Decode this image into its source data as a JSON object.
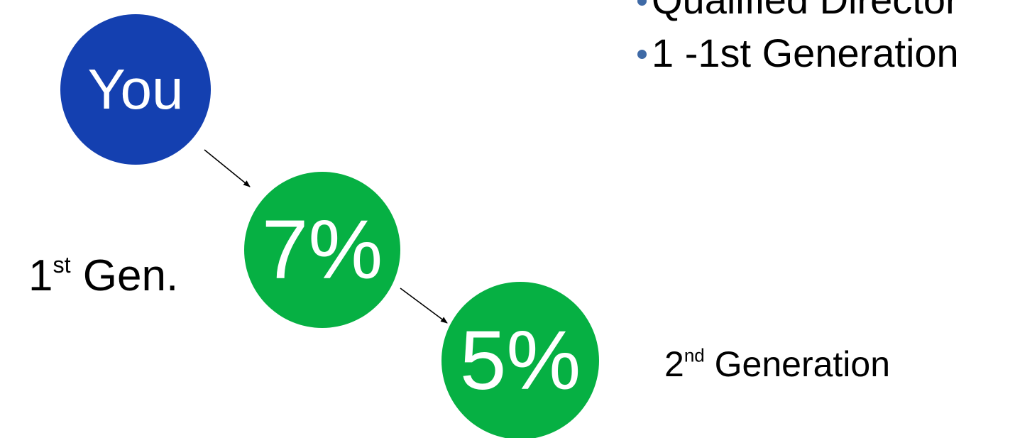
{
  "colors": {
    "you_node": "#1440b0",
    "generation_node": "#06b043",
    "bullet_dot": "#3f6aa6",
    "connector": "#000000"
  },
  "nodes": {
    "you": {
      "label": "You"
    },
    "first_gen": {
      "label": "7%"
    },
    "second_gen": {
      "label": "5%"
    }
  },
  "labels": {
    "first_gen": {
      "prefix": "1",
      "suffix": "st",
      "rest": " Gen."
    },
    "second_gen": {
      "prefix": "2",
      "suffix": "nd",
      "rest": " Generation"
    }
  },
  "bullets": [
    {
      "text": "Qualified Director"
    },
    {
      "text": "1 -1st Generation"
    }
  ]
}
